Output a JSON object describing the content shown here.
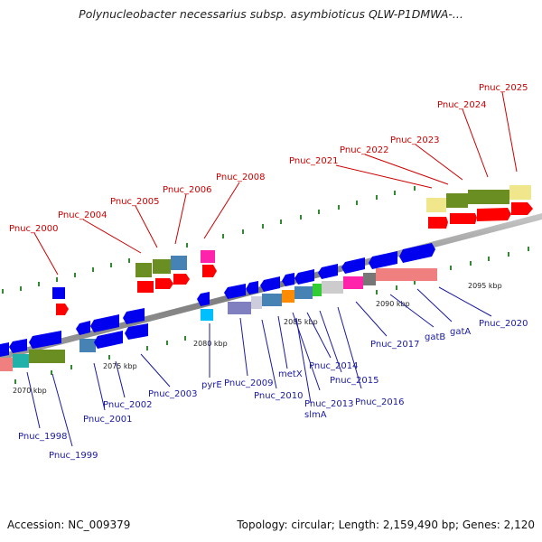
{
  "title": "Polynucleobacter necessarius subsp. asymbioticus QLW-P1DMWA-...",
  "accession": "Accession: NC_009379",
  "summary": "Topology: circular; Length: 2,159,490 bp; Genes: 2,120",
  "colors": {
    "backbone": "#8a8a8a",
    "forward_label": "#cc0000",
    "reverse_label": "#1a1aa0",
    "cds_forward": "#ff0000",
    "cds_reverse": "#0000ee",
    "tick": "#228b22"
  },
  "scale_labels": [
    "2070 kbp",
    "2075 kbp",
    "2080 kbp",
    "2085 kbp",
    "2090 kbp",
    "2095 kbp"
  ],
  "forward_genes": [
    "Pnuc_2000",
    "Pnuc_2004",
    "Pnuc_2005",
    "Pnuc_2006",
    "Pnuc_2008",
    "Pnuc_2021",
    "Pnuc_2022",
    "Pnuc_2023",
    "Pnuc_2024",
    "Pnuc_2025"
  ],
  "reverse_genes": [
    "Pnuc_1998",
    "Pnuc_1999",
    "Pnuc_2001",
    "Pnuc_2002",
    "Pnuc_2003",
    "pyrE",
    "Pnuc_2009",
    "Pnuc_2010",
    "metX",
    "Pnuc_2013",
    "slmA",
    "Pnuc_2014",
    "Pnuc_2015",
    "Pnuc_2016",
    "Pnuc_2017",
    "gatB",
    "gatA",
    "Pnuc_2020"
  ]
}
